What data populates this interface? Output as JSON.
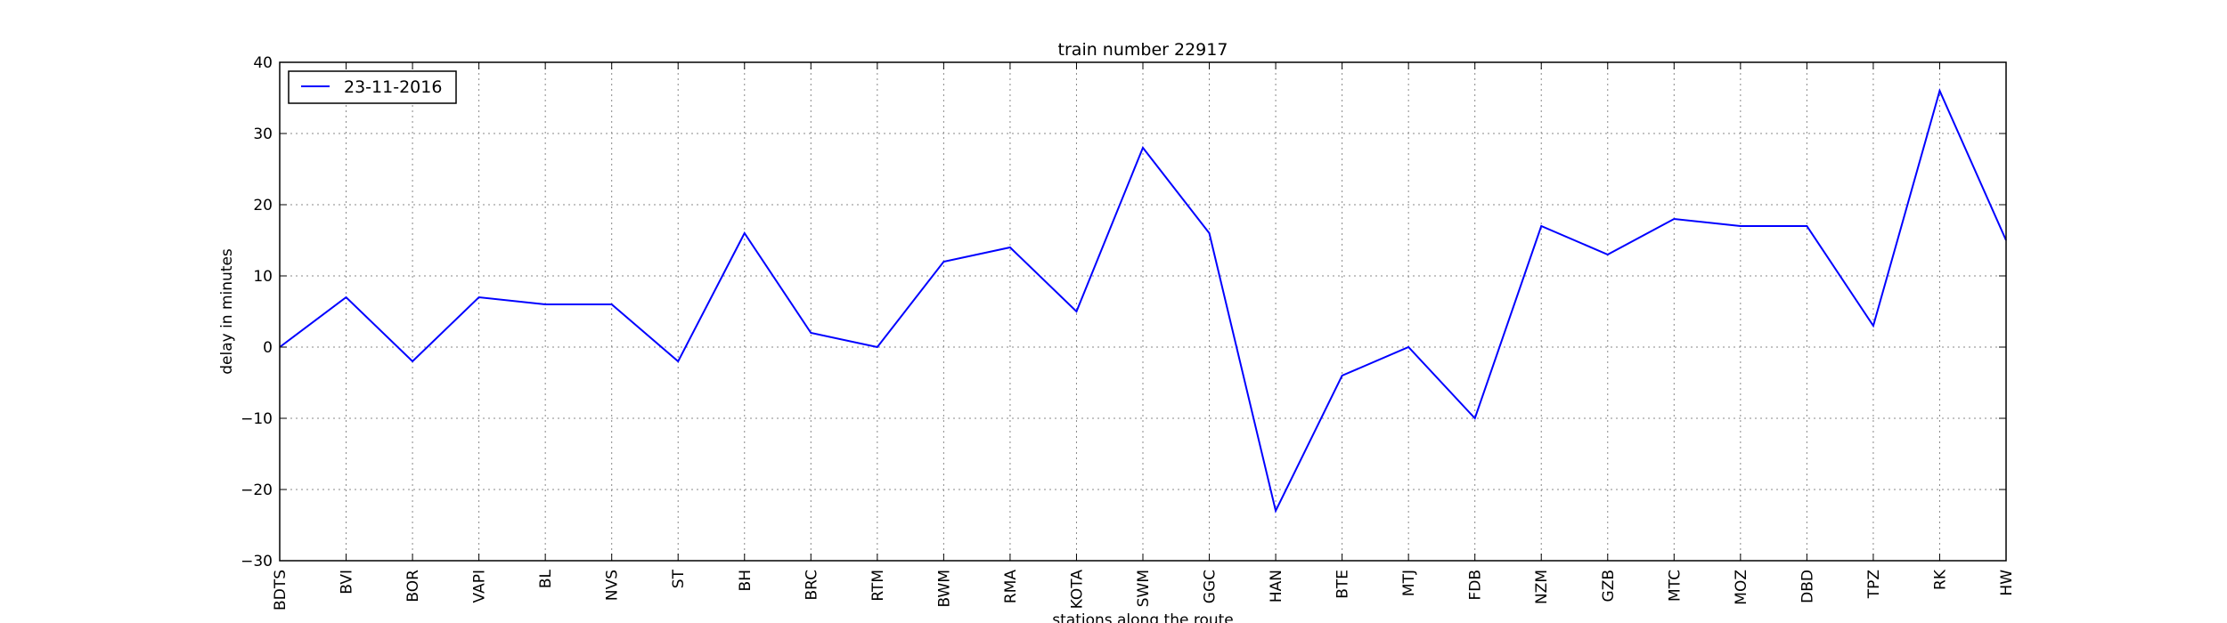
{
  "chart_data": {
    "type": "line",
    "title": "train number 22917",
    "xlabel": "stations along the route",
    "ylabel": "delay in minutes",
    "ylim": [
      -30,
      40
    ],
    "yticks": [
      -30,
      -20,
      -10,
      0,
      10,
      20,
      30,
      40
    ],
    "grid": true,
    "legend_position": "top-left",
    "categories": [
      "BDTS",
      "BVI",
      "BOR",
      "VAPI",
      "BL",
      "NVS",
      "ST",
      "BH",
      "BRC",
      "RTM",
      "BWM",
      "RMA",
      "KOTA",
      "SWM",
      "GGC",
      "HAN",
      "BTE",
      "MTJ",
      "FDB",
      "NZM",
      "GZB",
      "MTC",
      "MOZ",
      "DBD",
      "TPZ",
      "RK",
      "HW"
    ],
    "series": [
      {
        "name": "23-11-2016",
        "color": "#0000ff",
        "values": [
          0,
          7,
          -2,
          7,
          6,
          6,
          -2,
          16,
          2,
          0,
          12,
          14,
          5,
          28,
          16,
          -23,
          -4,
          0,
          -10,
          17,
          13,
          18,
          17,
          17,
          3,
          36,
          15
        ]
      }
    ]
  }
}
